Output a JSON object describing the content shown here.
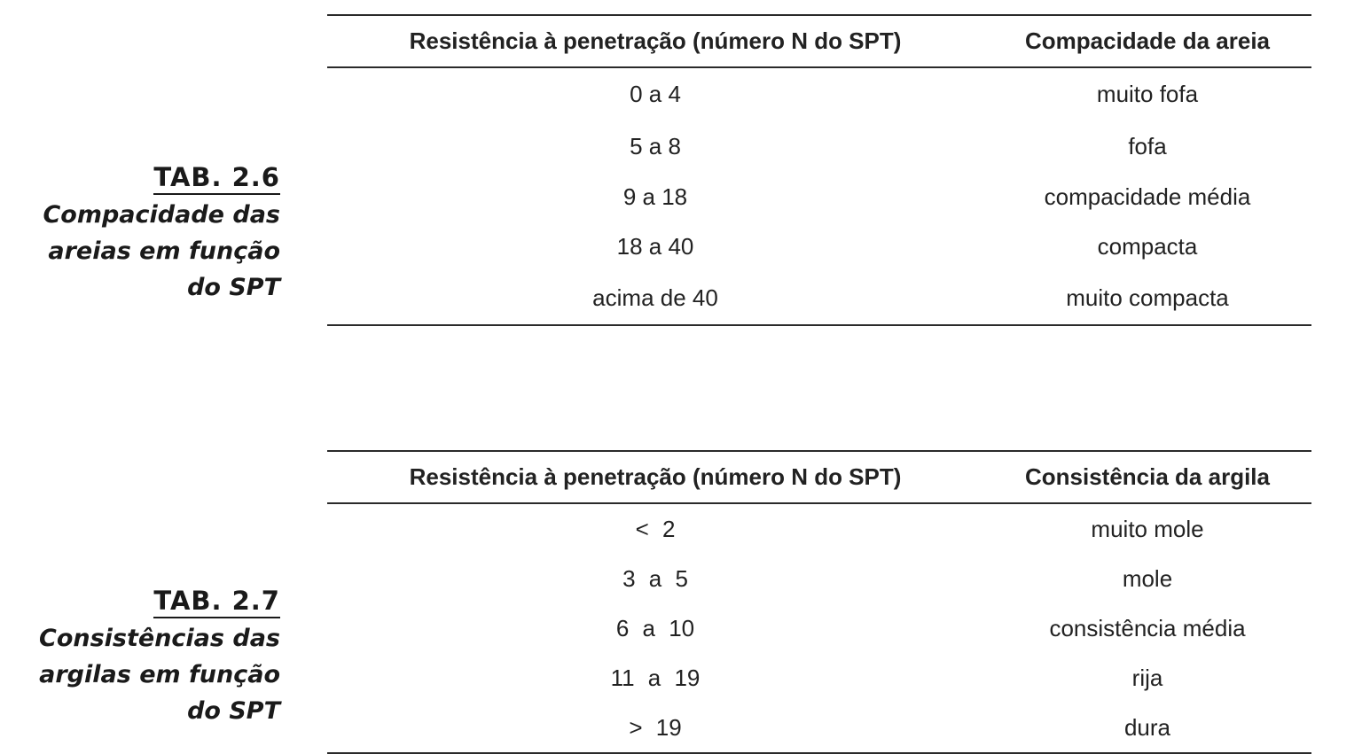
{
  "tables": [
    {
      "caption_label": "TAB. 2.6",
      "caption_lines": [
        "Compacidade das",
        "areias em função",
        "do SPT"
      ],
      "headers": [
        "Resistência à penetração (número N do SPT)",
        "Compacidade da areia"
      ],
      "rows": [
        [
          "0 a 4",
          "muito fofa"
        ],
        [
          "5 a 8",
          "fofa"
        ],
        [
          "9 a 18",
          "compacidade média"
        ],
        [
          "18 a 40",
          "compacta"
        ],
        [
          "acima de 40",
          "muito compacta"
        ]
      ]
    },
    {
      "caption_label": "TAB. 2.7",
      "caption_lines": [
        "Consistências das",
        "argilas em função",
        "do SPT"
      ],
      "headers": [
        "Resistência à penetração (número N do SPT)",
        "Consistência da argila"
      ],
      "rows": [
        [
          "< 2",
          "muito mole"
        ],
        [
          "3 a 5",
          "mole"
        ],
        [
          "6 a 10",
          "consistência média"
        ],
        [
          "11 a 19",
          "rija"
        ],
        [
          "> 19",
          "dura"
        ]
      ]
    }
  ]
}
